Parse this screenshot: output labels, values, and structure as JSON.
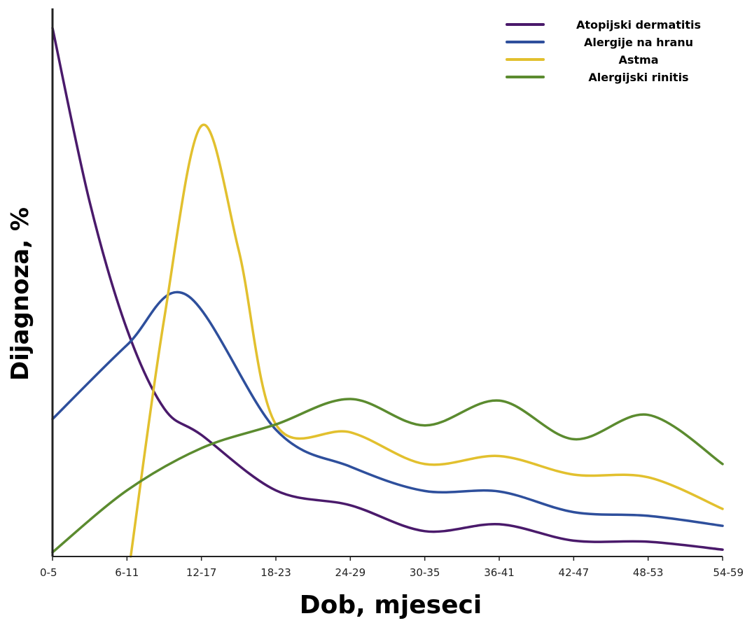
{
  "chart_data": {
    "type": "line",
    "xlabel": "Dob, mjeseci",
    "ylabel": "Dijagnoza, %",
    "categories": [
      "0-5",
      "6-11",
      "12-17",
      "18-23",
      "24-29",
      "30-35",
      "36-41",
      "42-47",
      "48-53",
      "54-59"
    ],
    "ylim": [
      0,
      100
    ],
    "grid": false,
    "legend_position": "top-right",
    "series": [
      {
        "name": "Atopijski dermatitis",
        "color": "#4a1a6b",
        "x": [
          0,
          0.5,
          1,
          1.5,
          2,
          3,
          4,
          5,
          6,
          7,
          8,
          9
        ],
        "y": [
          100,
          67,
          43,
          28,
          23,
          12.5,
          9.7,
          4.8,
          6.1,
          3,
          2.8,
          1.3
        ]
      },
      {
        "name": "Alergije na hranu",
        "color": "#2e4f9c",
        "x": [
          0,
          1,
          1.8,
          3,
          4,
          5,
          6,
          7,
          8,
          9
        ],
        "y": [
          26,
          40,
          49.5,
          24,
          17,
          12.4,
          12.3,
          8.4,
          7.7,
          5.8
        ]
      },
      {
        "name": "Astma",
        "color": "#e2c02e",
        "x": [
          1.05,
          1.5,
          2,
          2.5,
          3,
          4,
          5,
          6,
          7,
          8,
          9
        ],
        "y": [
          0,
          45,
          81.5,
          58,
          25,
          23.5,
          17.5,
          19,
          15.5,
          15,
          9
        ]
      },
      {
        "name": "Alergijski rinitis",
        "color": "#5b8b2f",
        "x": [
          0,
          1,
          2,
          3,
          4,
          5,
          6,
          7,
          8,
          9
        ],
        "y": [
          0.8,
          12.5,
          20.5,
          25,
          29.8,
          24.8,
          29.5,
          22.2,
          26.8,
          17.5
        ]
      }
    ]
  }
}
